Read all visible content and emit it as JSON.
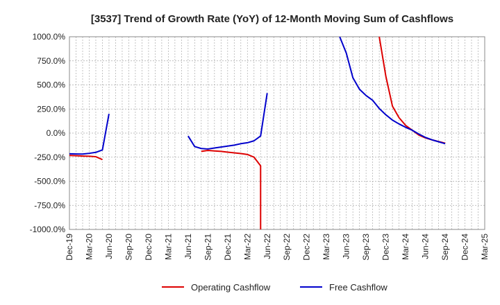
{
  "chart_data": {
    "type": "line",
    "title": "[3537]  Trend of Growth Rate (YoY) of 12-Month Moving Sum of Cashflows",
    "xlabel": "",
    "ylabel": "",
    "ylim": [
      -1000,
      1000
    ],
    "y_ticks": [
      "1000.0%",
      "750.0%",
      "500.0%",
      "250.0%",
      "0.0%",
      "-250.0%",
      "-500.0%",
      "-750.0%",
      "-1000.0%"
    ],
    "y_tick_values": [
      1000,
      750,
      500,
      250,
      0,
      -250,
      -500,
      -750,
      -1000
    ],
    "x_ticks": [
      "Dec-19",
      "Mar-20",
      "Jun-20",
      "Sep-20",
      "Dec-20",
      "Mar-21",
      "Jun-21",
      "Sep-21",
      "Dec-21",
      "Mar-22",
      "Jun-22",
      "Sep-22",
      "Dec-22",
      "Mar-23",
      "Jun-23",
      "Sep-23",
      "Dec-23",
      "Mar-24",
      "Jun-24",
      "Sep-24",
      "Dec-24",
      "Mar-25"
    ],
    "x_range": [
      "2019-12",
      "2025-03"
    ],
    "grid": true,
    "legend_position": "bottom",
    "series": [
      {
        "name": "Operating Cashflow",
        "color": "#dd0000",
        "segments": [
          [
            [
              "2019-12",
              -232
            ],
            [
              "2020-01",
              -235
            ],
            [
              "2020-02",
              -238
            ],
            [
              "2020-03",
              -240
            ],
            [
              "2020-04",
              -245
            ],
            [
              "2020-05",
              -275
            ]
          ],
          [
            [
              "2021-08",
              -190
            ],
            [
              "2021-09",
              -180
            ],
            [
              "2021-10",
              -185
            ],
            [
              "2021-11",
              -190
            ],
            [
              "2021-12",
              -198
            ],
            [
              "2022-01",
              -205
            ],
            [
              "2022-02",
              -212
            ],
            [
              "2022-03",
              -222
            ],
            [
              "2022-04",
              -250
            ],
            [
              "2022-05",
              -340
            ],
            [
              "2022-05",
              -1000
            ]
          ],
          [
            [
              "2023-11",
              1000
            ],
            [
              "2023-12",
              590
            ],
            [
              "2024-01",
              280
            ],
            [
              "2024-02",
              160
            ],
            [
              "2024-03",
              80
            ],
            [
              "2024-04",
              30
            ],
            [
              "2024-05",
              -20
            ],
            [
              "2024-06",
              -50
            ],
            [
              "2024-07",
              -70
            ],
            [
              "2024-08",
              -88
            ],
            [
              "2024-09",
              -105
            ]
          ]
        ]
      },
      {
        "name": "Free Cashflow",
        "color": "#0000cc",
        "segments": [
          [
            [
              "2019-12",
              -215
            ],
            [
              "2020-01",
              -217
            ],
            [
              "2020-02",
              -218
            ],
            [
              "2020-03",
              -210
            ],
            [
              "2020-04",
              -200
            ],
            [
              "2020-05",
              -175
            ],
            [
              "2020-06",
              200
            ]
          ],
          [
            [
              "2021-06",
              -30
            ],
            [
              "2021-07",
              -140
            ],
            [
              "2021-08",
              -160
            ],
            [
              "2021-09",
              -165
            ],
            [
              "2021-10",
              -155
            ],
            [
              "2021-11",
              -145
            ],
            [
              "2021-12",
              -135
            ],
            [
              "2022-01",
              -125
            ],
            [
              "2022-02",
              -110
            ],
            [
              "2022-03",
              -100
            ],
            [
              "2022-04",
              -80
            ],
            [
              "2022-05",
              -30
            ],
            [
              "2022-06",
              415
            ]
          ],
          [
            [
              "2023-05",
              1000
            ],
            [
              "2023-06",
              830
            ],
            [
              "2023-07",
              575
            ],
            [
              "2023-08",
              455
            ],
            [
              "2023-09",
              390
            ],
            [
              "2023-10",
              340
            ],
            [
              "2023-11",
              255
            ],
            [
              "2023-12",
              190
            ],
            [
              "2024-01",
              135
            ],
            [
              "2024-02",
              95
            ],
            [
              "2024-03",
              60
            ],
            [
              "2024-04",
              30
            ],
            [
              "2024-05",
              -10
            ],
            [
              "2024-06",
              -45
            ],
            [
              "2024-07",
              -70
            ],
            [
              "2024-08",
              -90
            ],
            [
              "2024-09",
              -110
            ]
          ]
        ]
      }
    ]
  }
}
